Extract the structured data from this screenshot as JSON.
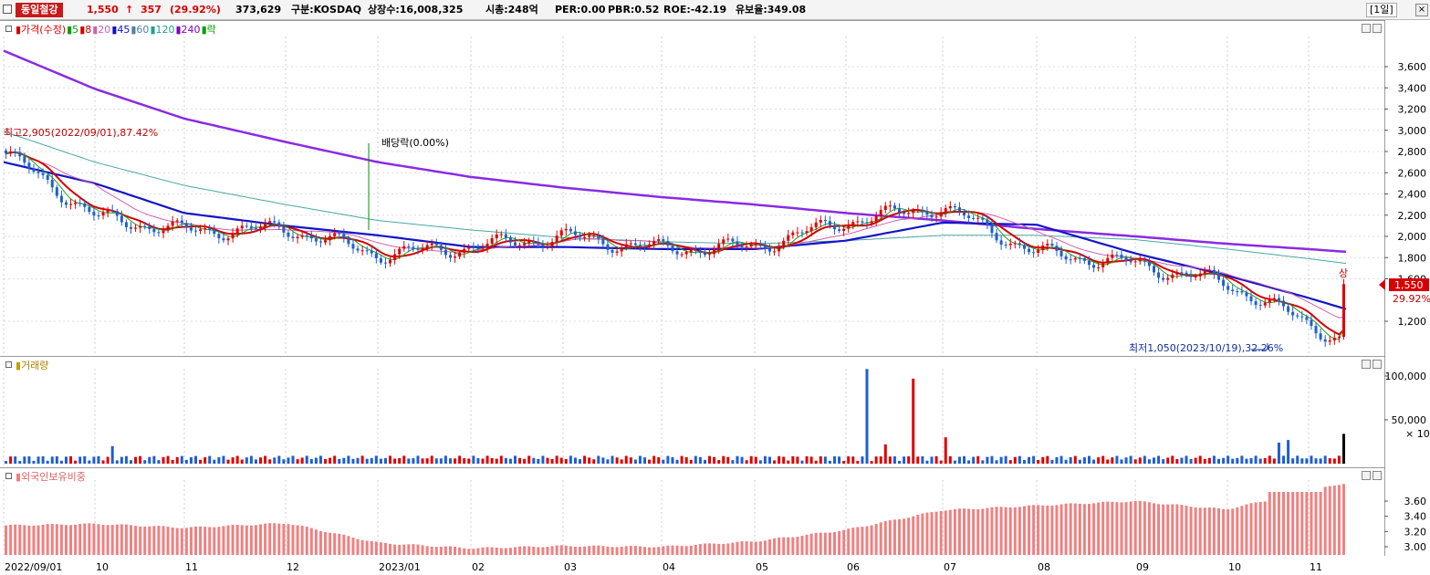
{
  "header": {
    "stock_name": "동일철강",
    "price": "1,550",
    "change_arrow": "↑",
    "change": "357",
    "change_pct": "(29.92%)",
    "volume": "373,629",
    "market": "구분:KOSDAQ",
    "shares": "상장수:16,008,325",
    "market_cap": "시총:248억",
    "per": "PER:0.00",
    "pbr": "PBR:0.52",
    "roe": "ROE:-42.19",
    "reserve_ratio": "유보율:349.08",
    "period": "[1일]",
    "close_label": "×"
  },
  "price_panel": {
    "legend": [
      {
        "text": "가격(수정)",
        "color": "#d40000"
      },
      {
        "text": "5",
        "color": "#00a000"
      },
      {
        "text": "8",
        "color": "#d40000"
      },
      {
        "text": "20",
        "color": "#d060b0"
      },
      {
        "text": "45",
        "color": "#1010c0"
      },
      {
        "text": "60",
        "color": "#5080a0"
      },
      {
        "text": "120",
        "color": "#20a090"
      },
      {
        "text": "240",
        "color": "#8000c0"
      },
      {
        "text": "락",
        "color": "#00a000"
      }
    ],
    "high_annotation": "최고2,905(2022/09/01),87.42%",
    "low_annotation": "최저1,050(2023/10/19),32.26%",
    "dividend_annotation": "배당락(0.00%)",
    "limit_up_label": "상",
    "current_price_label": "1,550",
    "current_pct_label": "29.92%",
    "y_ticks": [
      "3,600",
      "3,400",
      "3,200",
      "3,000",
      "2,800",
      "2,600",
      "2,400",
      "2,200",
      "2,000",
      "1,800",
      "1,600",
      "1,200"
    ]
  },
  "volume_panel": {
    "legend": "거래량",
    "y_ticks": [
      "100,000",
      "50,000"
    ],
    "unit": "× 10"
  },
  "foreign_panel": {
    "legend": "외국인보유비중",
    "y_ticks": [
      "3.60",
      "3.40",
      "3.20",
      "3.00"
    ]
  },
  "x_axis": {
    "labels": [
      "2022/09/01",
      "10",
      "11",
      "12",
      "2023/01",
      "02",
      "03",
      "04",
      "05",
      "06",
      "07",
      "08",
      "09",
      "10",
      "11"
    ]
  },
  "colors": {
    "up": "#e00000",
    "down": "#1f5fd0",
    "ratio_bar": "#f08080"
  },
  "chart_data": {
    "type": "candlestick",
    "title": "동일철강",
    "x": [
      "2022/09",
      "2022/10",
      "2022/11",
      "2022/12",
      "2023/01",
      "2023/02",
      "2023/03",
      "2023/04",
      "2023/05",
      "2023/06",
      "2023/07",
      "2023/08",
      "2023/09",
      "2023/10",
      "2023/11"
    ],
    "close_approx": [
      2780,
      2180,
      2050,
      2070,
      1830,
      1900,
      2000,
      1880,
      1900,
      2140,
      2280,
      1850,
      1740,
      1560,
      1190
    ],
    "series": [
      {
        "name": "240",
        "values": [
          3750,
          3390,
          3110,
          2890,
          2700,
          2560,
          2460,
          2370,
          2300,
          2220,
          2150,
          2070,
          2000,
          1930,
          1880
        ]
      },
      {
        "name": "120",
        "values": [
          2990,
          2700,
          2480,
          2300,
          2150,
          2060,
          1990,
          1950,
          1930,
          1960,
          2010,
          2010,
          1970,
          1880,
          1790
        ]
      },
      {
        "name": "45",
        "values": [
          2700,
          2500,
          2220,
          2100,
          2010,
          1900,
          1900,
          1880,
          1880,
          1960,
          2130,
          2110,
          1840,
          1630,
          1420
        ]
      }
    ],
    "last": {
      "close": 1550,
      "change": 357,
      "change_pct": 29.92,
      "volume": 373629
    },
    "annotations": [
      {
        "label": "최고2,905(2022/09/01),87.42%",
        "x": "2022/09/01",
        "y": 2905
      },
      {
        "label": "최저1,050(2023/10/19),32.26%",
        "x": "2023/10/19",
        "y": 1050
      },
      {
        "label": "배당락(0.00%)",
        "x": "2022/12/28"
      }
    ],
    "volume_ylim": [
      0,
      120000
    ],
    "foreign_ratio_ylim": [
      2.9,
      3.75
    ],
    "ylim": [
      1050,
      3750
    ]
  }
}
